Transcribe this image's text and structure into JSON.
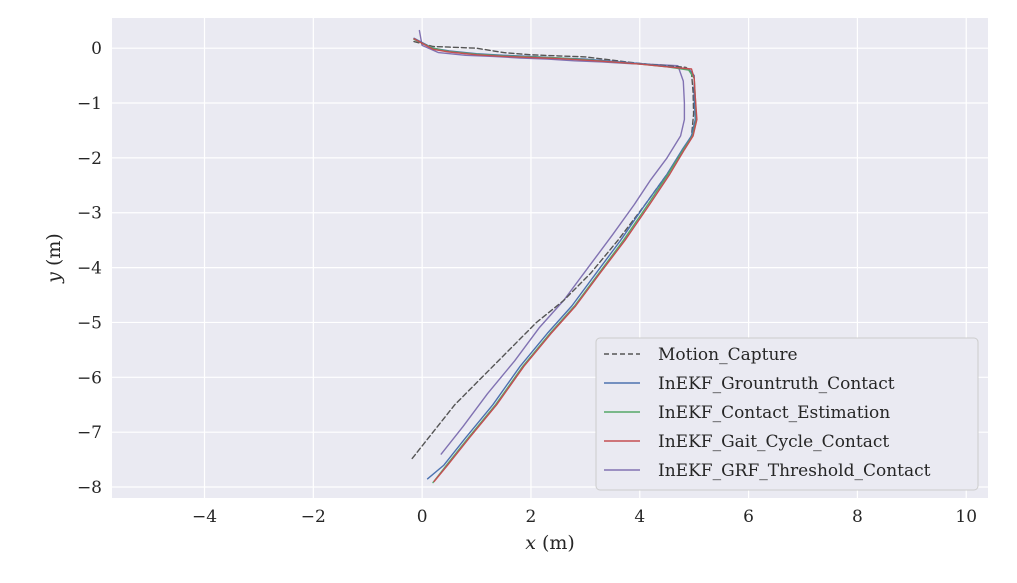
{
  "chart_data": {
    "type": "line",
    "title": "",
    "xlabel_var": "x",
    "xlabel_unit": "(m)",
    "ylabel_var": "y",
    "ylabel_unit": "(m)",
    "xlim": [
      -5.7,
      10.4
    ],
    "ylim": [
      -8.2,
      0.55
    ],
    "xticks": [
      -4,
      -2,
      0,
      2,
      4,
      6,
      8,
      10
    ],
    "yticks": [
      0,
      -1,
      -2,
      -3,
      -4,
      -5,
      -6,
      -7,
      -8
    ],
    "xtick_labels": [
      "−4",
      "−2",
      "0",
      "2",
      "4",
      "6",
      "8",
      "10"
    ],
    "ytick_labels": [
      "0",
      "−1",
      "−2",
      "−3",
      "−4",
      "−5",
      "−6",
      "−7",
      "−8"
    ],
    "grid": true,
    "legend_position": "bottom-right",
    "series": [
      {
        "name": "Motion_Capture",
        "color": "#555555",
        "dashed": true,
        "points": [
          [
            -0.15,
            0.12
          ],
          [
            0.2,
            0.03
          ],
          [
            0.5,
            0.02
          ],
          [
            1.0,
            0.0
          ],
          [
            1.5,
            -0.08
          ],
          [
            2.0,
            -0.12
          ],
          [
            2.5,
            -0.14
          ],
          [
            3.0,
            -0.16
          ],
          [
            3.5,
            -0.22
          ],
          [
            4.0,
            -0.28
          ],
          [
            4.5,
            -0.32
          ],
          [
            4.85,
            -0.35
          ],
          [
            4.95,
            -0.45
          ],
          [
            4.98,
            -0.8
          ],
          [
            4.99,
            -1.2
          ],
          [
            4.95,
            -1.6
          ],
          [
            4.8,
            -1.85
          ],
          [
            4.5,
            -2.3
          ],
          [
            4.1,
            -2.85
          ],
          [
            3.6,
            -3.5
          ],
          [
            3.1,
            -4.1
          ],
          [
            2.6,
            -4.6
          ],
          [
            2.1,
            -5.0
          ],
          [
            1.6,
            -5.5
          ],
          [
            1.1,
            -6.0
          ],
          [
            0.6,
            -6.5
          ],
          [
            0.2,
            -7.0
          ],
          [
            -0.2,
            -7.5
          ]
        ]
      },
      {
        "name": "InEKF_Grountruth_Contact",
        "color": "#4c72b0",
        "dashed": false,
        "points": [
          [
            -0.15,
            0.18
          ],
          [
            0.2,
            0.0
          ],
          [
            0.5,
            -0.05
          ],
          [
            1.0,
            -0.1
          ],
          [
            1.5,
            -0.13
          ],
          [
            2.0,
            -0.15
          ],
          [
            2.5,
            -0.18
          ],
          [
            3.0,
            -0.2
          ],
          [
            3.5,
            -0.24
          ],
          [
            4.0,
            -0.28
          ],
          [
            4.5,
            -0.33
          ],
          [
            4.9,
            -0.38
          ],
          [
            5.0,
            -0.5
          ],
          [
            5.0,
            -0.9
          ],
          [
            5.02,
            -1.3
          ],
          [
            4.95,
            -1.6
          ],
          [
            4.78,
            -1.85
          ],
          [
            4.5,
            -2.3
          ],
          [
            4.1,
            -2.85
          ],
          [
            3.65,
            -3.5
          ],
          [
            3.2,
            -4.1
          ],
          [
            2.75,
            -4.7
          ],
          [
            2.3,
            -5.2
          ],
          [
            1.8,
            -5.8
          ],
          [
            1.3,
            -6.5
          ],
          [
            0.8,
            -7.1
          ],
          [
            0.4,
            -7.6
          ],
          [
            0.1,
            -7.85
          ]
        ]
      },
      {
        "name": "InEKF_Contact_Estimation",
        "color": "#55a868",
        "dashed": false,
        "points": [
          [
            -0.15,
            0.16
          ],
          [
            0.2,
            0.0
          ],
          [
            0.5,
            -0.06
          ],
          [
            1.0,
            -0.11
          ],
          [
            1.5,
            -0.14
          ],
          [
            2.0,
            -0.16
          ],
          [
            2.5,
            -0.18
          ],
          [
            3.0,
            -0.21
          ],
          [
            3.5,
            -0.25
          ],
          [
            4.0,
            -0.29
          ],
          [
            4.5,
            -0.34
          ],
          [
            4.9,
            -0.4
          ],
          [
            5.0,
            -0.55
          ],
          [
            5.02,
            -0.9
          ],
          [
            5.04,
            -1.3
          ],
          [
            4.97,
            -1.6
          ],
          [
            4.8,
            -1.85
          ],
          [
            4.52,
            -2.3
          ],
          [
            4.15,
            -2.85
          ],
          [
            3.7,
            -3.5
          ],
          [
            3.25,
            -4.1
          ],
          [
            2.8,
            -4.7
          ],
          [
            2.35,
            -5.2
          ],
          [
            1.85,
            -5.8
          ],
          [
            1.35,
            -6.5
          ],
          [
            0.85,
            -7.1
          ],
          [
            0.45,
            -7.6
          ],
          [
            0.2,
            -7.92
          ]
        ]
      },
      {
        "name": "InEKF_Gait_Cycle_Contact",
        "color": "#c44e52",
        "dashed": false,
        "points": [
          [
            -0.15,
            0.17
          ],
          [
            0.2,
            -0.02
          ],
          [
            0.5,
            -0.07
          ],
          [
            1.0,
            -0.12
          ],
          [
            1.5,
            -0.15
          ],
          [
            2.0,
            -0.17
          ],
          [
            2.5,
            -0.19
          ],
          [
            3.0,
            -0.22
          ],
          [
            3.5,
            -0.25
          ],
          [
            4.0,
            -0.29
          ],
          [
            4.5,
            -0.34
          ],
          [
            4.95,
            -0.38
          ],
          [
            5.0,
            -0.55
          ],
          [
            5.02,
            -0.9
          ],
          [
            5.05,
            -1.3
          ],
          [
            4.98,
            -1.6
          ],
          [
            4.82,
            -1.85
          ],
          [
            4.55,
            -2.3
          ],
          [
            4.18,
            -2.85
          ],
          [
            3.73,
            -3.5
          ],
          [
            3.27,
            -4.1
          ],
          [
            2.82,
            -4.7
          ],
          [
            2.37,
            -5.2
          ],
          [
            1.87,
            -5.8
          ],
          [
            1.37,
            -6.5
          ],
          [
            0.87,
            -7.1
          ],
          [
            0.47,
            -7.6
          ],
          [
            0.22,
            -7.9
          ]
        ]
      },
      {
        "name": "InEKF_GRF_Threshold_Contact",
        "color": "#8172b2",
        "dashed": false,
        "points": [
          [
            -0.05,
            0.32
          ],
          [
            0.0,
            0.05
          ],
          [
            0.3,
            -0.08
          ],
          [
            0.8,
            -0.13
          ],
          [
            1.3,
            -0.15
          ],
          [
            1.8,
            -0.18
          ],
          [
            2.3,
            -0.2
          ],
          [
            2.8,
            -0.23
          ],
          [
            3.3,
            -0.25
          ],
          [
            3.8,
            -0.28
          ],
          [
            4.3,
            -0.3
          ],
          [
            4.7,
            -0.32
          ],
          [
            4.8,
            -0.6
          ],
          [
            4.82,
            -1.0
          ],
          [
            4.82,
            -1.3
          ],
          [
            4.75,
            -1.6
          ],
          [
            4.5,
            -2.0
          ],
          [
            4.2,
            -2.4
          ],
          [
            3.9,
            -2.85
          ],
          [
            3.5,
            -3.4
          ],
          [
            3.05,
            -4.0
          ],
          [
            2.6,
            -4.6
          ],
          [
            2.15,
            -5.1
          ],
          [
            1.7,
            -5.7
          ],
          [
            1.2,
            -6.3
          ],
          [
            0.75,
            -6.9
          ],
          [
            0.35,
            -7.4
          ]
        ]
      }
    ]
  }
}
